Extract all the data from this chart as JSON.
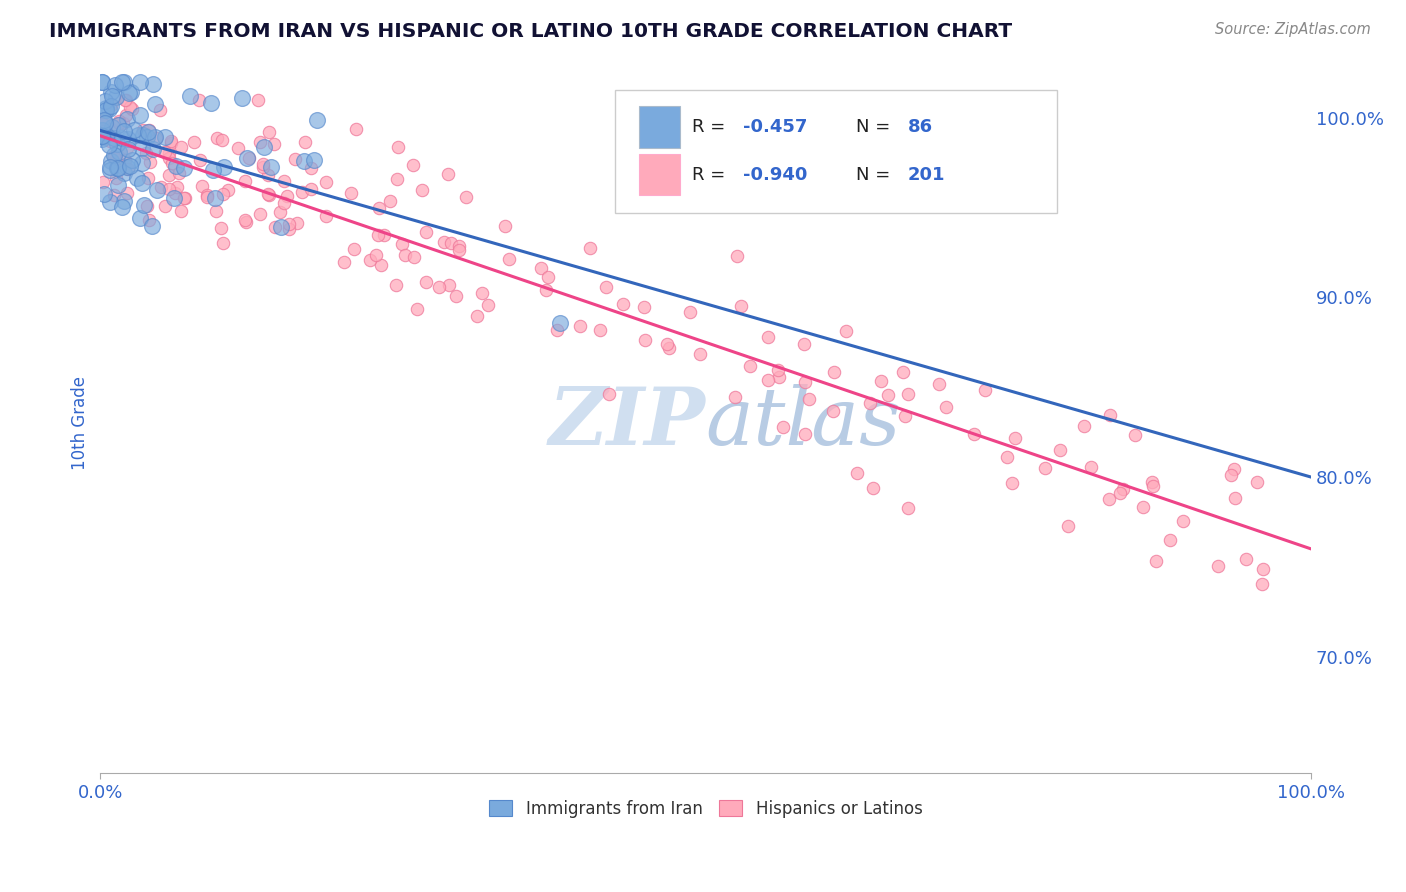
{
  "title": "IMMIGRANTS FROM IRAN VS HISPANIC OR LATINO 10TH GRADE CORRELATION CHART",
  "source": "Source: ZipAtlas.com",
  "ylabel": "10th Grade",
  "xlim": [
    0.0,
    1.0
  ],
  "ylim": [
    0.635,
    1.025
  ],
  "y_tick_values_right": [
    0.7,
    0.8,
    0.9,
    1.0
  ],
  "y_tick_labels_right": [
    "70.0%",
    "80.0%",
    "90.0%",
    "100.0%"
  ],
  "series1": {
    "name": "Immigrants from Iran",
    "color": "#7aaadd",
    "edge_color": "#5588cc",
    "R": -0.457,
    "N": 86,
    "trend_color": "#3366bb",
    "trend_y_start": 0.993,
    "trend_y_end": 0.8
  },
  "series2": {
    "name": "Hispanics or Latinos",
    "color": "#ffaabb",
    "edge_color": "#ee7799",
    "R": -0.94,
    "N": 201,
    "trend_color": "#ee4488",
    "trend_y_start": 0.99,
    "trend_y_end": 0.76
  },
  "legend_text_color": "#3366cc",
  "legend_label_color": "#333333",
  "watermark_color": "#d0dff0",
  "background_color": "#ffffff",
  "grid_color": "#cccccc",
  "title_color": "#111133",
  "axis_label_color": "#3366cc"
}
